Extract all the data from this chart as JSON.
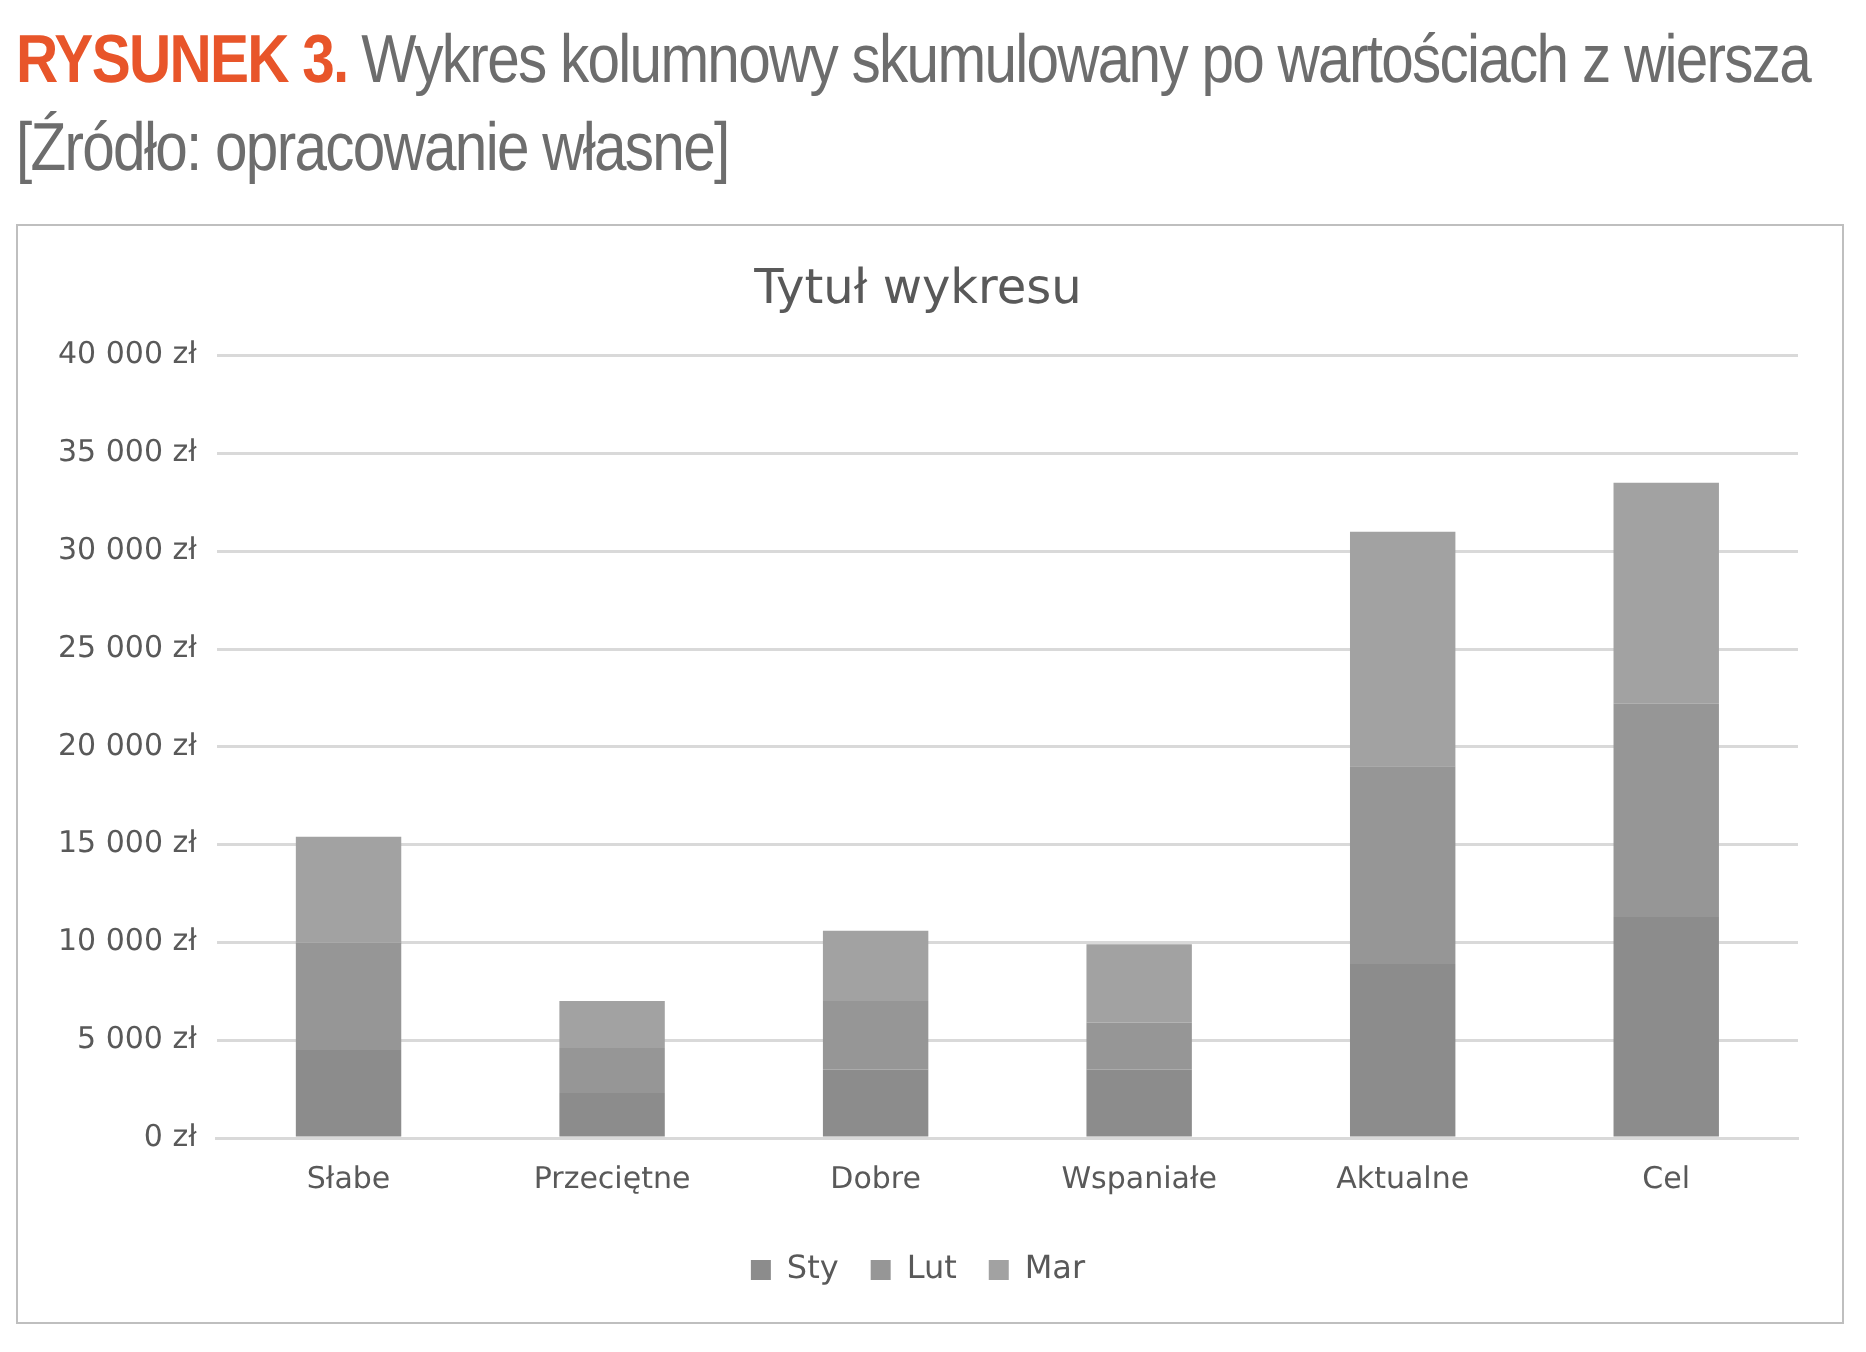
{
  "chart_data": {
    "type": "bar",
    "title": "Tytuł wykresu",
    "annotations": [
      "RYSUNEK 3.",
      "Wykres kolumnowy skumulowany po wartościach z wiersza [Źródło: opracowanie własne]"
    ],
    "categories": [
      "Słabe",
      "Przeciętne",
      "Dobre",
      "Wspaniałe",
      "Aktualne",
      "Cel"
    ],
    "series": [
      {
        "name": "Sty",
        "color": "#8c8c8c",
        "values": [
          4500,
          2300,
          3500,
          3500,
          8900,
          11300
        ]
      },
      {
        "name": "Lut",
        "color": "#969696",
        "values": [
          5500,
          2300,
          3500,
          2400,
          10100,
          10900
        ]
      },
      {
        "name": "Mar",
        "color": "#a2a2a2",
        "values": [
          5400,
          2400,
          3600,
          4000,
          12000,
          11300
        ]
      }
    ],
    "stacked": true,
    "ylim": [
      0,
      40000
    ],
    "yticks": [
      {
        "value": 0,
        "label": "0 zł"
      },
      {
        "value": 5000,
        "label": "5 000 zł"
      },
      {
        "value": 10000,
        "label": "10 000 zł"
      },
      {
        "value": 15000,
        "label": "15 000 zł"
      },
      {
        "value": 20000,
        "label": "20 000 zł"
      },
      {
        "value": 25000,
        "label": "25 000 zł"
      },
      {
        "value": 30000,
        "label": "30 000 zł"
      },
      {
        "value": 35000,
        "label": "35 000 zł"
      },
      {
        "value": 40000,
        "label": "40 000 zł"
      }
    ],
    "grid": "y",
    "legend": "bottom"
  }
}
